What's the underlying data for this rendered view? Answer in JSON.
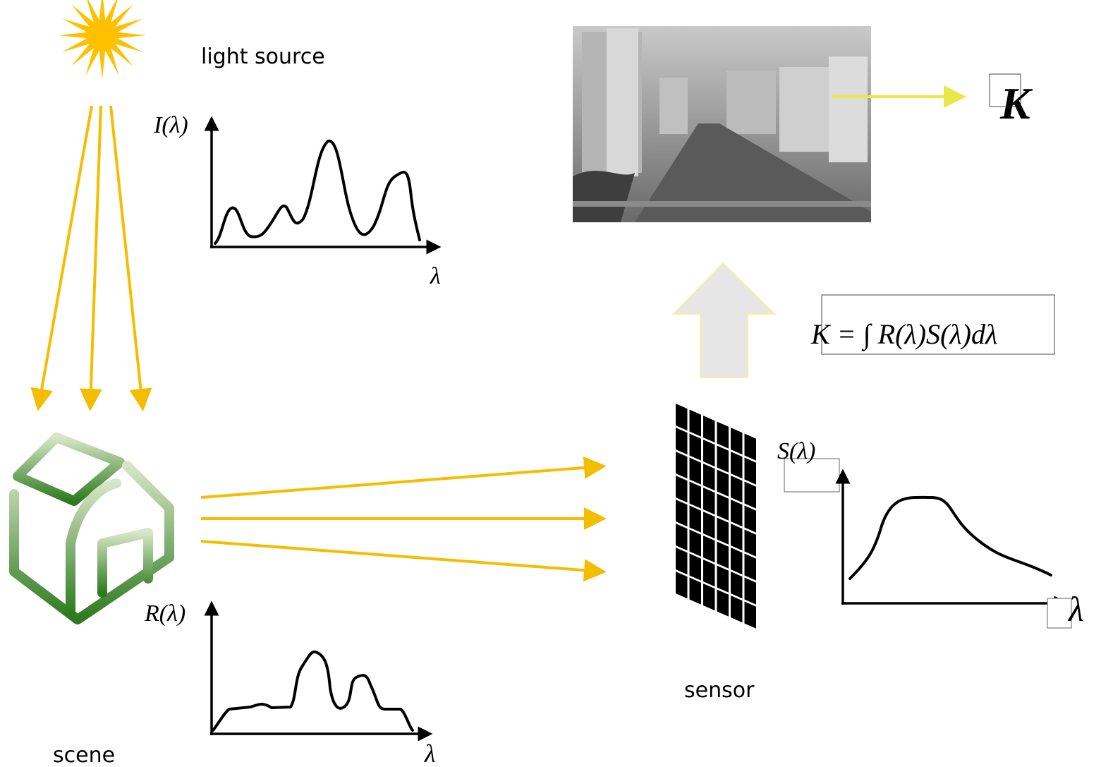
{
  "labels": {
    "light_source": "light source",
    "scene": "scene",
    "sensor": "sensor"
  },
  "graphs": [
    {
      "y_label": "I(λ)",
      "x_label": "λ"
    },
    {
      "y_label": "R(λ)",
      "x_label": "λ"
    },
    {
      "y_label": "S(λ)",
      "x_label": "λ"
    }
  ],
  "formula": "K = ∫ R(λ)S(λ)dλ",
  "output": "K"
}
